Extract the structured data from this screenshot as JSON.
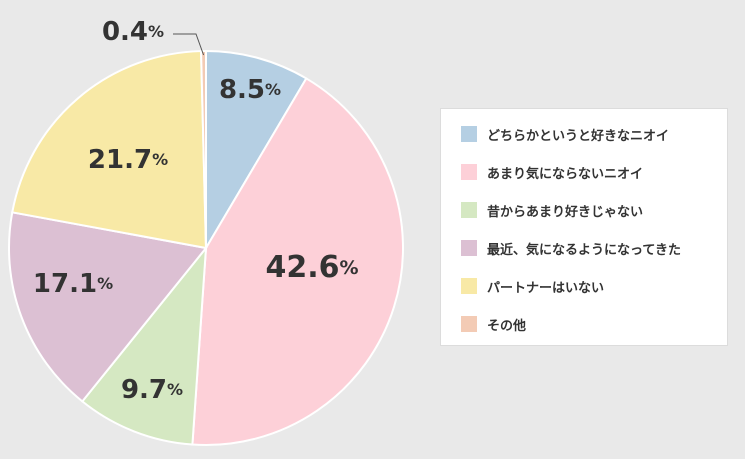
{
  "chart_data": {
    "type": "pie",
    "start_angle_deg": 0,
    "direction": "clockwise",
    "categories": [
      "どちらかというと好きなニオイ",
      "あまり気にならないニオイ",
      "昔からあまり好きじゃない",
      "最近、気になるようになってきた",
      "パートナーはいない",
      "その他"
    ],
    "values": [
      8.5,
      42.6,
      9.7,
      17.1,
      21.7,
      0.4
    ],
    "labels": [
      "8.5",
      "42.6",
      "9.7",
      "17.1",
      "21.7",
      "0.4"
    ],
    "unit": "%",
    "colors": [
      "#b5cfe3",
      "#fdd0d8",
      "#d5e8c2",
      "#dcc0d3",
      "#f8e9a6",
      "#f3cbb5"
    ],
    "legend_position": "right",
    "title": ""
  }
}
